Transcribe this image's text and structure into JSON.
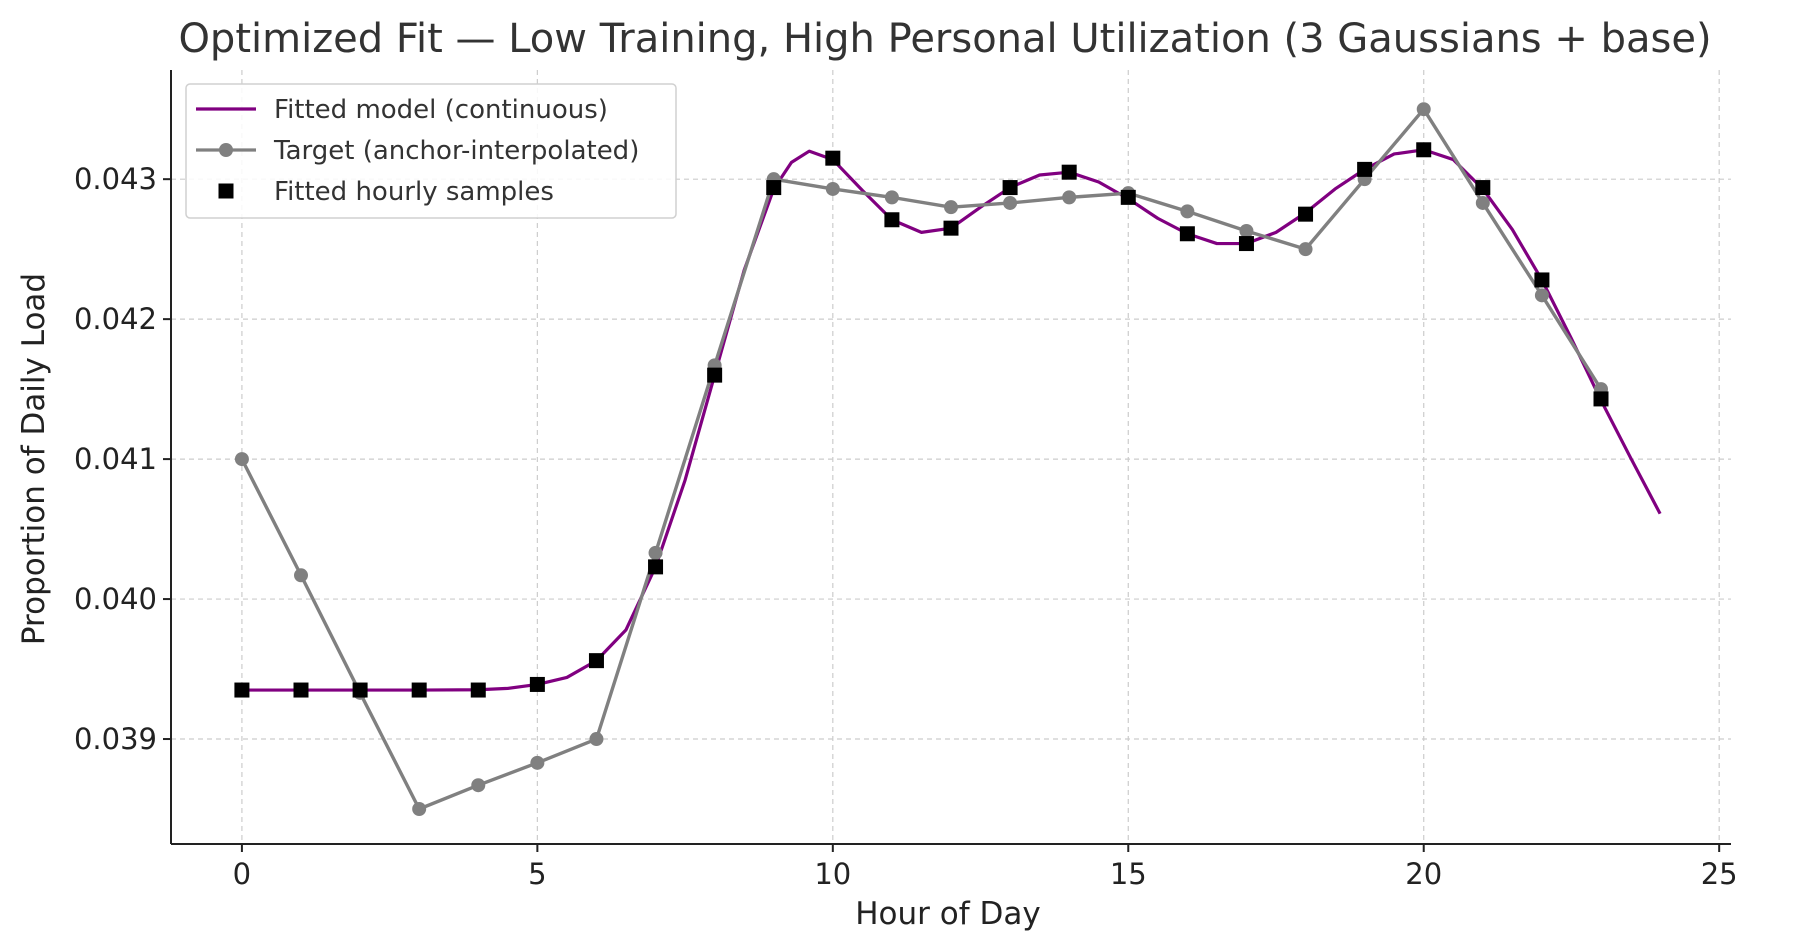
{
  "chart_data": {
    "type": "line",
    "title": "Optimized Fit — Low Training, High Personal Utilization (3 Gaussians + base)",
    "xlabel": "Hour of Day",
    "ylabel": "Proportion of Daily Load",
    "xlim": [
      -1.2,
      25.2
    ],
    "ylim": [
      0.03825,
      0.04378
    ],
    "x_ticks": [
      0,
      5,
      10,
      15,
      20,
      25
    ],
    "x_tick_labels": [
      "0",
      "5",
      "10",
      "15",
      "20",
      "25"
    ],
    "y_ticks": [
      0.039,
      0.04,
      0.041,
      0.042,
      0.043
    ],
    "y_tick_labels": [
      "0.039",
      "0.040",
      "0.041",
      "0.042",
      "0.043"
    ],
    "grid": true,
    "legend_position": "top-left",
    "series": [
      {
        "name": "Fitted model (continuous)",
        "style": "line",
        "color": "#800080",
        "x": [
          0,
          1,
          2,
          3,
          4,
          4.5,
          5,
          5.5,
          6,
          6.5,
          7,
          7.5,
          8,
          8.5,
          9,
          9.3,
          9.6,
          10,
          10.5,
          11,
          11.5,
          12,
          12.5,
          13,
          13.5,
          14,
          14.5,
          15,
          15.5,
          16,
          16.5,
          17,
          17.5,
          18,
          18.5,
          19,
          19.5,
          20,
          20.5,
          21,
          21.5,
          22,
          22.5,
          23,
          23.5,
          24
        ],
        "y": [
          0.03935,
          0.03935,
          0.03935,
          0.03935,
          0.039352,
          0.039362,
          0.03939,
          0.03944,
          0.03956,
          0.03978,
          0.04023,
          0.04085,
          0.0416,
          0.04235,
          0.04293,
          0.04312,
          0.0432,
          0.04314,
          0.04292,
          0.04271,
          0.04262,
          0.04265,
          0.0428,
          0.04294,
          0.04303,
          0.04305,
          0.04298,
          0.04286,
          0.04272,
          0.04261,
          0.04254,
          0.04254,
          0.04262,
          0.04276,
          0.04293,
          0.04307,
          0.04318,
          0.04321,
          0.04314,
          0.04293,
          0.04264,
          0.04228,
          0.04186,
          0.04142,
          0.04101,
          0.04061
        ]
      },
      {
        "name": "Target (anchor-interpolated)",
        "style": "line-marker",
        "color": "#808080",
        "x": [
          0,
          1,
          2,
          3,
          4,
          5,
          6,
          7,
          8,
          9,
          10,
          11,
          12,
          13,
          14,
          15,
          16,
          17,
          18,
          19,
          20,
          21,
          22,
          23
        ],
        "y": [
          0.041,
          0.04017,
          0.03933,
          0.0385,
          0.03867,
          0.03883,
          0.039,
          0.04033,
          0.04167,
          0.043,
          0.04293,
          0.04287,
          0.0428,
          0.04283,
          0.04287,
          0.0429,
          0.04277,
          0.04263,
          0.0425,
          0.043,
          0.0435,
          0.04283,
          0.04217,
          0.0415
        ]
      },
      {
        "name": "Fitted hourly samples",
        "style": "marker",
        "color": "#000000",
        "x": [
          0,
          1,
          2,
          3,
          4,
          5,
          6,
          7,
          8,
          9,
          10,
          11,
          12,
          13,
          14,
          15,
          16,
          17,
          18,
          19,
          20,
          21,
          22,
          23
        ],
        "y": [
          0.03935,
          0.03935,
          0.03935,
          0.03935,
          0.03935,
          0.03939,
          0.03956,
          0.04023,
          0.0416,
          0.04294,
          0.04315,
          0.04271,
          0.04265,
          0.04294,
          0.04305,
          0.04287,
          0.04261,
          0.04254,
          0.04275,
          0.04307,
          0.04321,
          0.04294,
          0.04228,
          0.04143
        ]
      }
    ]
  }
}
